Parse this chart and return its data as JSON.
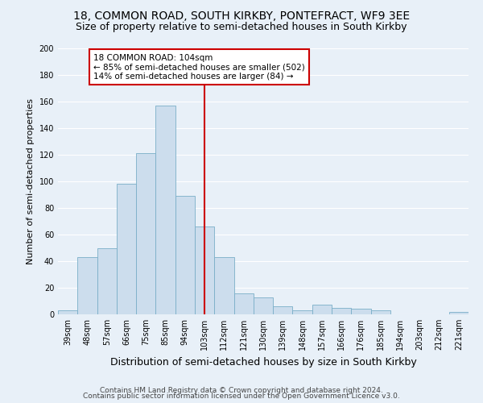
{
  "title": "18, COMMON ROAD, SOUTH KIRKBY, PONTEFRACT, WF9 3EE",
  "subtitle": "Size of property relative to semi-detached houses in South Kirkby",
  "xlabel": "Distribution of semi-detached houses by size in South Kirkby",
  "ylabel": "Number of semi-detached properties",
  "categories": [
    "39sqm",
    "48sqm",
    "57sqm",
    "66sqm",
    "75sqm",
    "85sqm",
    "94sqm",
    "103sqm",
    "112sqm",
    "121sqm",
    "130sqm",
    "139sqm",
    "148sqm",
    "157sqm",
    "166sqm",
    "176sqm",
    "185sqm",
    "194sqm",
    "203sqm",
    "212sqm",
    "221sqm"
  ],
  "values": [
    3,
    43,
    50,
    98,
    121,
    157,
    89,
    66,
    43,
    16,
    13,
    6,
    3,
    7,
    5,
    4,
    3,
    0,
    0,
    0,
    2
  ],
  "bar_color": "#ccdded",
  "bar_edge_color": "#7aaec8",
  "reference_line_index": 7,
  "annotation_title": "18 COMMON ROAD: 104sqm",
  "annotation_line1": "← 85% of semi-detached houses are smaller (502)",
  "annotation_line2": "14% of semi-detached houses are larger (84) →",
  "footer_line1": "Contains HM Land Registry data © Crown copyright and database right 2024.",
  "footer_line2": "Contains public sector information licensed under the Open Government Licence v3.0.",
  "ylim": [
    0,
    200
  ],
  "background_color": "#e8f0f8",
  "plot_background": "#e8f0f8",
  "grid_color": "#ffffff",
  "title_fontsize": 10,
  "subtitle_fontsize": 9,
  "ylabel_fontsize": 8,
  "xlabel_fontsize": 9,
  "tick_fontsize": 7,
  "annotation_box_color": "#ffffff",
  "annotation_box_edge": "#cc0000",
  "ref_line_color": "#cc0000",
  "footer_fontsize": 6.5
}
